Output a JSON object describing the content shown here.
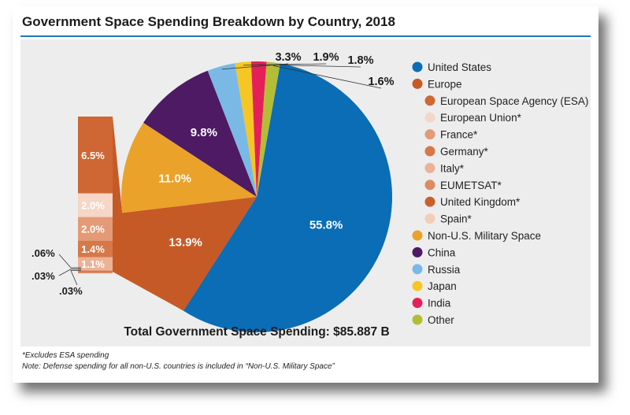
{
  "title": "Government Space Spending Breakdown by Country, 2018",
  "total_label": "Total Government Space Spending: $85.887 B",
  "notes": [
    "*Excludes ESA spending",
    "Note: Defense spending for all non-U.S. countries is included in “Non-U.S. Military Space”"
  ],
  "chart_data": {
    "type": "pie",
    "slices": [
      {
        "name": "United States",
        "value": 55.8,
        "label": "55.8%",
        "color": "#0a6db6"
      },
      {
        "name": "Europe",
        "value": 13.9,
        "label": "13.9%",
        "color": "#c65a26"
      },
      {
        "name": "Non-U.S. Military Space",
        "value": 11.0,
        "label": "11.0%",
        "color": "#eaa22a"
      },
      {
        "name": "China",
        "value": 9.8,
        "label": "9.8%",
        "color": "#4d1a63"
      },
      {
        "name": "Russia",
        "value": 3.3,
        "label": "3.3%",
        "color": "#7ab9e6"
      },
      {
        "name": "Japan",
        "value": 1.9,
        "label": "1.9%",
        "color": "#f6c625"
      },
      {
        "name": "India",
        "value": 1.8,
        "label": "1.8%",
        "color": "#e52059"
      },
      {
        "name": "Other",
        "value": 1.6,
        "label": "1.6%",
        "color": "#b3be36"
      }
    ],
    "europe_breakdown": [
      {
        "name": "European Space Agency (ESA)",
        "value": 6.5,
        "label": "6.5%",
        "color": "#ce6734"
      },
      {
        "name": "European Union*",
        "value": 2.0,
        "label": "2.0%",
        "color": "#f6d6c6"
      },
      {
        "name": "France*",
        "value": 2.0,
        "label": "2.0%",
        "color": "#e49a76"
      },
      {
        "name": "Germany*",
        "value": 1.4,
        "label": "1.4%",
        "color": "#d67848"
      },
      {
        "name": "Italy*",
        "value": 1.1,
        "label": "1.1%",
        "color": "#ebb296"
      },
      {
        "name": "EUMETSAT*",
        "value": 0.06,
        "label": ".06%",
        "color": "#de8a62"
      },
      {
        "name": "United Kingdom*",
        "value": 0.03,
        "label": ".03%",
        "color": "#c9602c"
      },
      {
        "name": "Spain*",
        "value": 0.03,
        "label": ".03%",
        "color": "#f3cdb8"
      }
    ],
    "legend": [
      {
        "name": "United States",
        "color": "#0a6db6",
        "indent": false
      },
      {
        "name": "Europe",
        "color": "#c65a26",
        "indent": false
      },
      {
        "name": "European Space Agency (ESA)",
        "color": "#ce6734",
        "indent": true
      },
      {
        "name": "European Union*",
        "color": "#f6d6c6",
        "indent": true
      },
      {
        "name": "France*",
        "color": "#e49a76",
        "indent": true
      },
      {
        "name": "Germany*",
        "color": "#d67848",
        "indent": true
      },
      {
        "name": "Italy*",
        "color": "#ebb296",
        "indent": true
      },
      {
        "name": "EUMETSAT*",
        "color": "#de8a62",
        "indent": true
      },
      {
        "name": "United Kingdom*",
        "color": "#c9602c",
        "indent": true
      },
      {
        "name": "Spain*",
        "color": "#f3cdb8",
        "indent": true
      },
      {
        "name": "Non-U.S. Military Space",
        "color": "#eaa22a",
        "indent": false
      },
      {
        "name": "China",
        "color": "#4d1a63",
        "indent": false
      },
      {
        "name": "Russia",
        "color": "#7ab9e6",
        "indent": false
      },
      {
        "name": "Japan",
        "color": "#f6c625",
        "indent": false
      },
      {
        "name": "India",
        "color": "#e52059",
        "indent": false
      },
      {
        "name": "Other",
        "color": "#b3be36",
        "indent": false
      }
    ],
    "legend_position": "right"
  }
}
